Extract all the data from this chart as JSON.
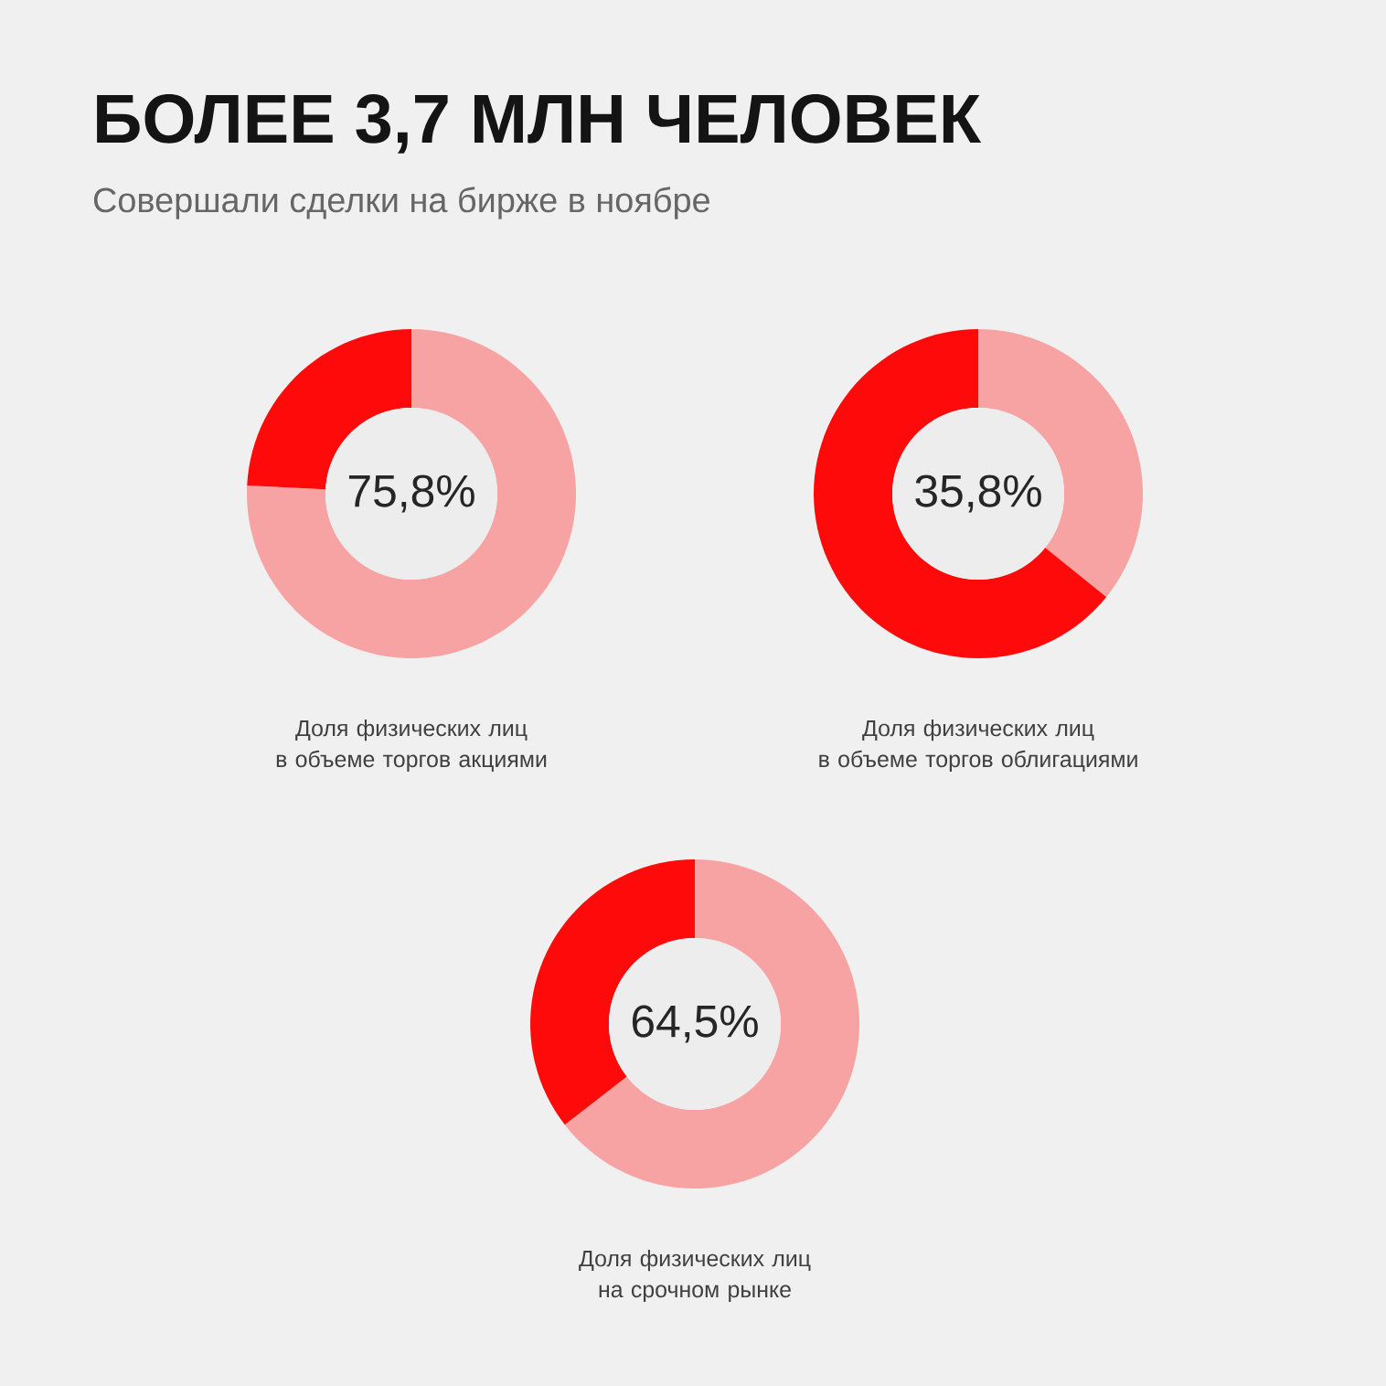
{
  "chart_data": [
    {
      "type": "donut",
      "title": "БОЛЕЕ 3,7 МЛН ЧЕЛОВЕК",
      "subtitle": "Совершали сделки на бирже в ноябре",
      "categories": [
        null,
        null
      ],
      "values": [
        75.8,
        24.2
      ],
      "colors": [
        "#f7a3a3",
        "#ff0a0a"
      ],
      "value_labels": [
        "75,8%",
        null
      ],
      "annotations": [
        "Доля физических лиц\nв объеме торгов акциями"
      ]
    },
    {
      "type": "donut",
      "categories": [
        null,
        null
      ],
      "values": [
        35.8,
        64.2
      ],
      "colors": [
        "#f7a3a3",
        "#ff0a0a"
      ],
      "value_labels": [
        "35,8%",
        null
      ],
      "annotations": [
        "Доля физических лиц\nв объеме торгов облигациями"
      ]
    },
    {
      "type": "donut",
      "categories": [
        null,
        null
      ],
      "values": [
        64.5,
        35.5
      ],
      "colors": [
        "#f7a3a3",
        "#ff0a0a"
      ],
      "value_labels": [
        "64,5%",
        null
      ],
      "annotations": [
        "Доля физических лиц\nна срочном рынке"
      ]
    }
  ]
}
